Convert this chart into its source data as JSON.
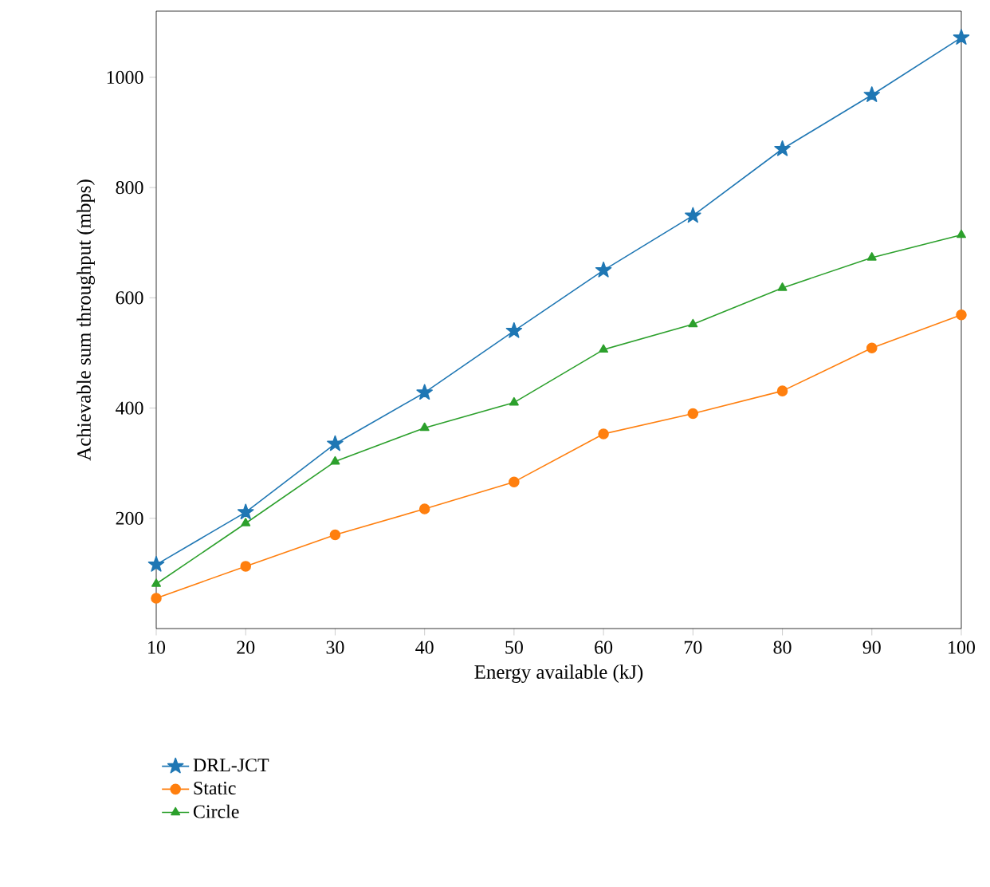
{
  "chart_data": {
    "type": "line",
    "xlabel": "Energy available (kJ)",
    "ylabel": "Achievable sum throughput (mbps)",
    "x": [
      10,
      20,
      30,
      40,
      50,
      60,
      70,
      80,
      90,
      100
    ],
    "series": [
      {
        "name": "DRL-JCT",
        "color": "#1f77b4",
        "marker": "star",
        "values": [
          116,
          211,
          335,
          428,
          540,
          650,
          749,
          870,
          968,
          1072
        ]
      },
      {
        "name": "Static",
        "color": "#ff7f0e",
        "marker": "circle",
        "values": [
          55,
          113,
          170,
          217,
          266,
          353,
          390,
          431,
          509,
          569
        ]
      },
      {
        "name": "Circle",
        "color": "#2ca02c",
        "marker": "triangle",
        "values": [
          81,
          191,
          303,
          364,
          410,
          506,
          552,
          618,
          673,
          714
        ]
      }
    ],
    "xlim": [
      10,
      100
    ],
    "ylim": [
      0,
      1120
    ],
    "xticks": [
      10,
      20,
      30,
      40,
      50,
      60,
      70,
      80,
      90,
      100
    ],
    "yticks": [
      200,
      400,
      600,
      800,
      1000
    ],
    "grid": false,
    "legend": "bottom left",
    "line_style": "solid"
  }
}
